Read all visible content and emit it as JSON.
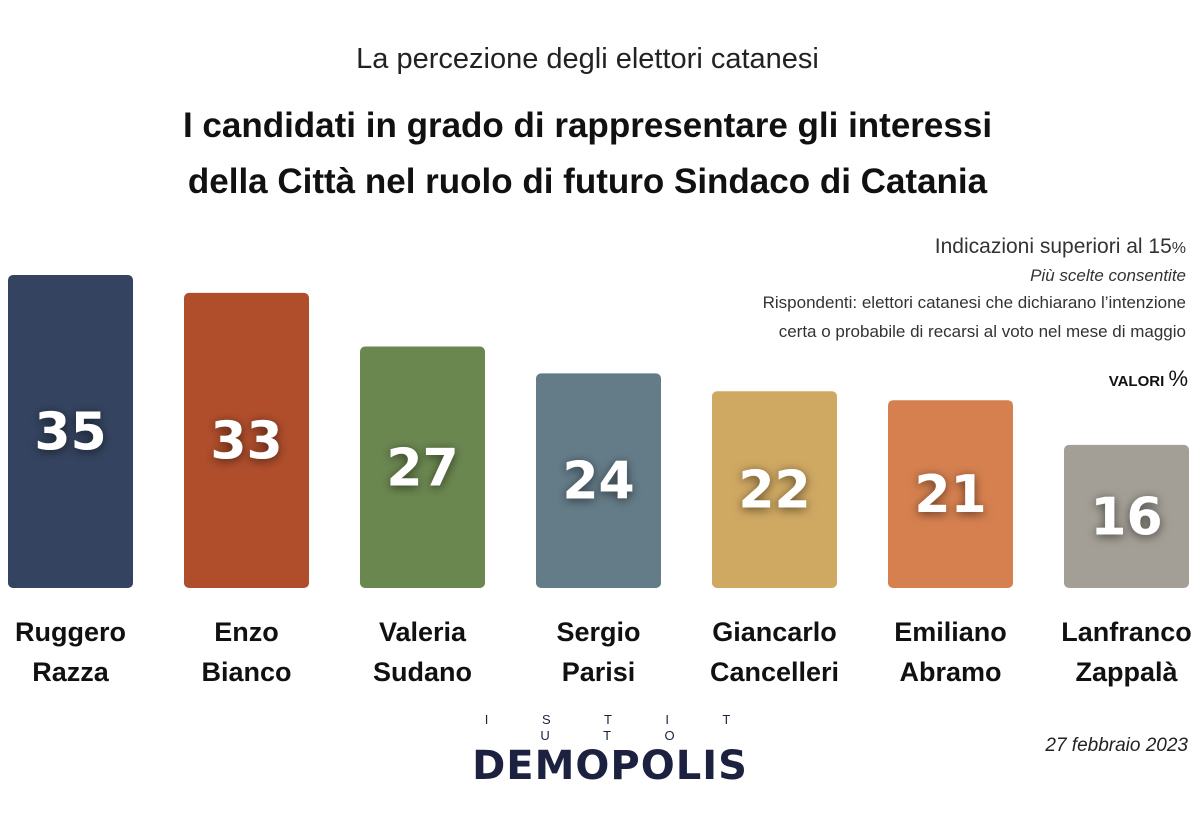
{
  "chart_data": {
    "type": "bar",
    "subtitle": "La percezione degli elettori catanesi",
    "title": [
      "I candidati in grado di rappresentare gli interessi",
      "della Città nel ruolo di futuro Sindaco di Catania"
    ],
    "categories": [
      [
        "Ruggero",
        "Razza"
      ],
      [
        "Enzo",
        "Bianco"
      ],
      [
        "Valeria",
        "Sudano"
      ],
      [
        "Sergio",
        "Parisi"
      ],
      [
        "Giancarlo",
        "Cancelleri"
      ],
      [
        "Emiliano",
        "Abramo"
      ],
      [
        "Lanfranco",
        "Zappalà"
      ]
    ],
    "values": [
      35,
      33,
      27,
      24,
      22,
      21,
      16
    ],
    "colors": [
      "#34435f",
      "#b04e2c",
      "#6b8750",
      "#647c88",
      "#cfa862",
      "#d6804f",
      "#a39e96"
    ],
    "unit": "%",
    "ylim": [
      0,
      35
    ],
    "grid": false,
    "data_labels": true
  },
  "notes": {
    "line1": "Indicazioni superiori al 15",
    "line1_pct": "%",
    "line2": "Più scelte consentite",
    "line3": "Rispondenti: elettori catanesi che dichiarano l’intenzione",
    "line4": "certa o probabile di recarsi al voto nel mese di maggio",
    "values_label": "VALORI",
    "values_pct": "%"
  },
  "logo": {
    "top": "I S T I T U T O",
    "name": "DEMOPOLIS"
  },
  "date": "27 febbraio 2023"
}
